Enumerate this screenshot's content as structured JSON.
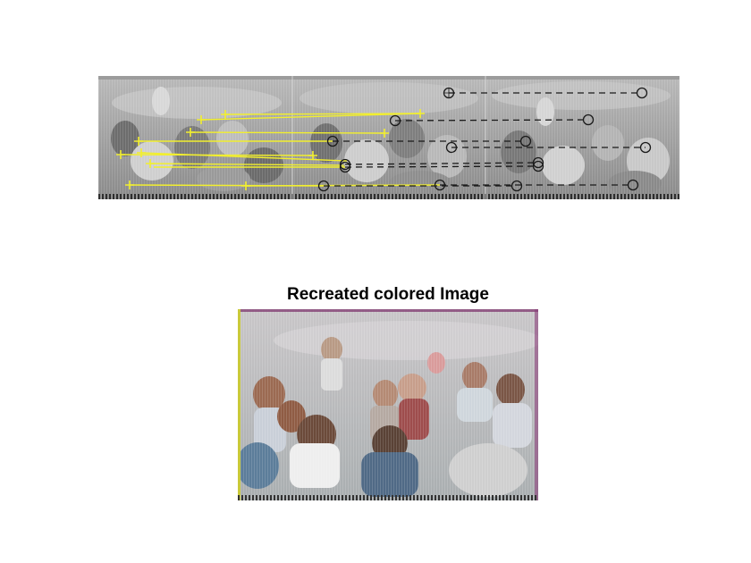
{
  "figure": {
    "recolored_title": "Recreated colored Image"
  },
  "colors": {
    "match_line": "#f2ef2e",
    "matched_marker": "#1a1a1a",
    "figure_background": "#ffffff"
  }
}
